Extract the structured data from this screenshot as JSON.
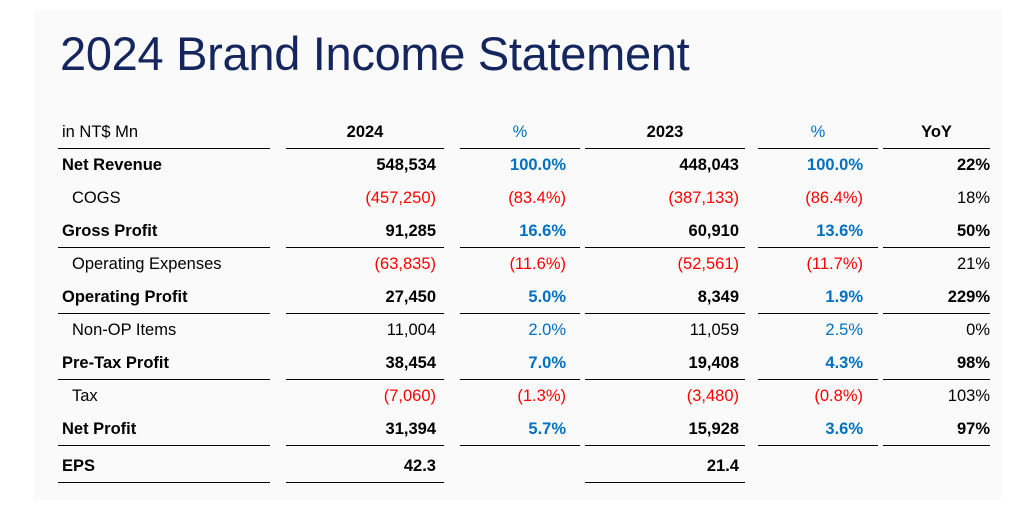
{
  "title": "2024 Brand Income Statement",
  "header": [
    "in NT$ Mn",
    "2024",
    "%",
    "2023",
    "%",
    "YoY"
  ],
  "rows": [
    {
      "label": "Net Revenue",
      "v2024": "548,534",
      "p2024": "100.0%",
      "v2023": "448,043",
      "p2023": "100.0%",
      "yoy": "22%",
      "bold": true,
      "line": false,
      "negative": false
    },
    {
      "label": "COGS",
      "v2024": "(457,250)",
      "p2024": "(83.4%)",
      "v2023": "(387,133)",
      "p2023": "(86.4%)",
      "yoy": "18%",
      "bold": false,
      "line": false,
      "negative": true
    },
    {
      "label": "Gross Profit",
      "v2024": "91,285",
      "p2024": "16.6%",
      "v2023": "60,910",
      "p2023": "13.6%",
      "yoy": "50%",
      "bold": true,
      "line": true,
      "negative": false
    },
    {
      "label": "Operating Expenses",
      "v2024": "(63,835)",
      "p2024": "(11.6%)",
      "v2023": "(52,561)",
      "p2023": "(11.7%)",
      "yoy": "21%",
      "bold": false,
      "line": false,
      "negative": true
    },
    {
      "label": "Operating Profit",
      "v2024": "27,450",
      "p2024": "5.0%",
      "v2023": "8,349",
      "p2023": "1.9%",
      "yoy": "229%",
      "bold": true,
      "line": true,
      "negative": false
    },
    {
      "label": "Non-OP Items",
      "v2024": "11,004",
      "p2024": "2.0%",
      "v2023": "11,059",
      "p2023": "2.5%",
      "yoy": "0%",
      "bold": false,
      "line": false,
      "negative": false
    },
    {
      "label": "Pre-Tax Profit",
      "v2024": "38,454",
      "p2024": "7.0%",
      "v2023": "19,408",
      "p2023": "4.3%",
      "yoy": "98%",
      "bold": true,
      "line": true,
      "negative": false
    },
    {
      "label": "Tax",
      "v2024": "(7,060)",
      "p2024": "(1.3%)",
      "v2023": "(3,480)",
      "p2023": "(0.8%)",
      "yoy": "103%",
      "bold": false,
      "line": false,
      "negative": true
    },
    {
      "label": "Net Profit",
      "v2024": "31,394",
      "p2024": "5.7%",
      "v2023": "15,928",
      "p2023": "3.6%",
      "yoy": "97%",
      "bold": true,
      "line": true,
      "negative": false
    }
  ],
  "eps": {
    "label": "EPS",
    "v2024": "42.3",
    "v2023": "21.4"
  },
  "colors": {
    "title": "#15265e",
    "percent": "#0070c0",
    "negative": "#ff0000"
  }
}
